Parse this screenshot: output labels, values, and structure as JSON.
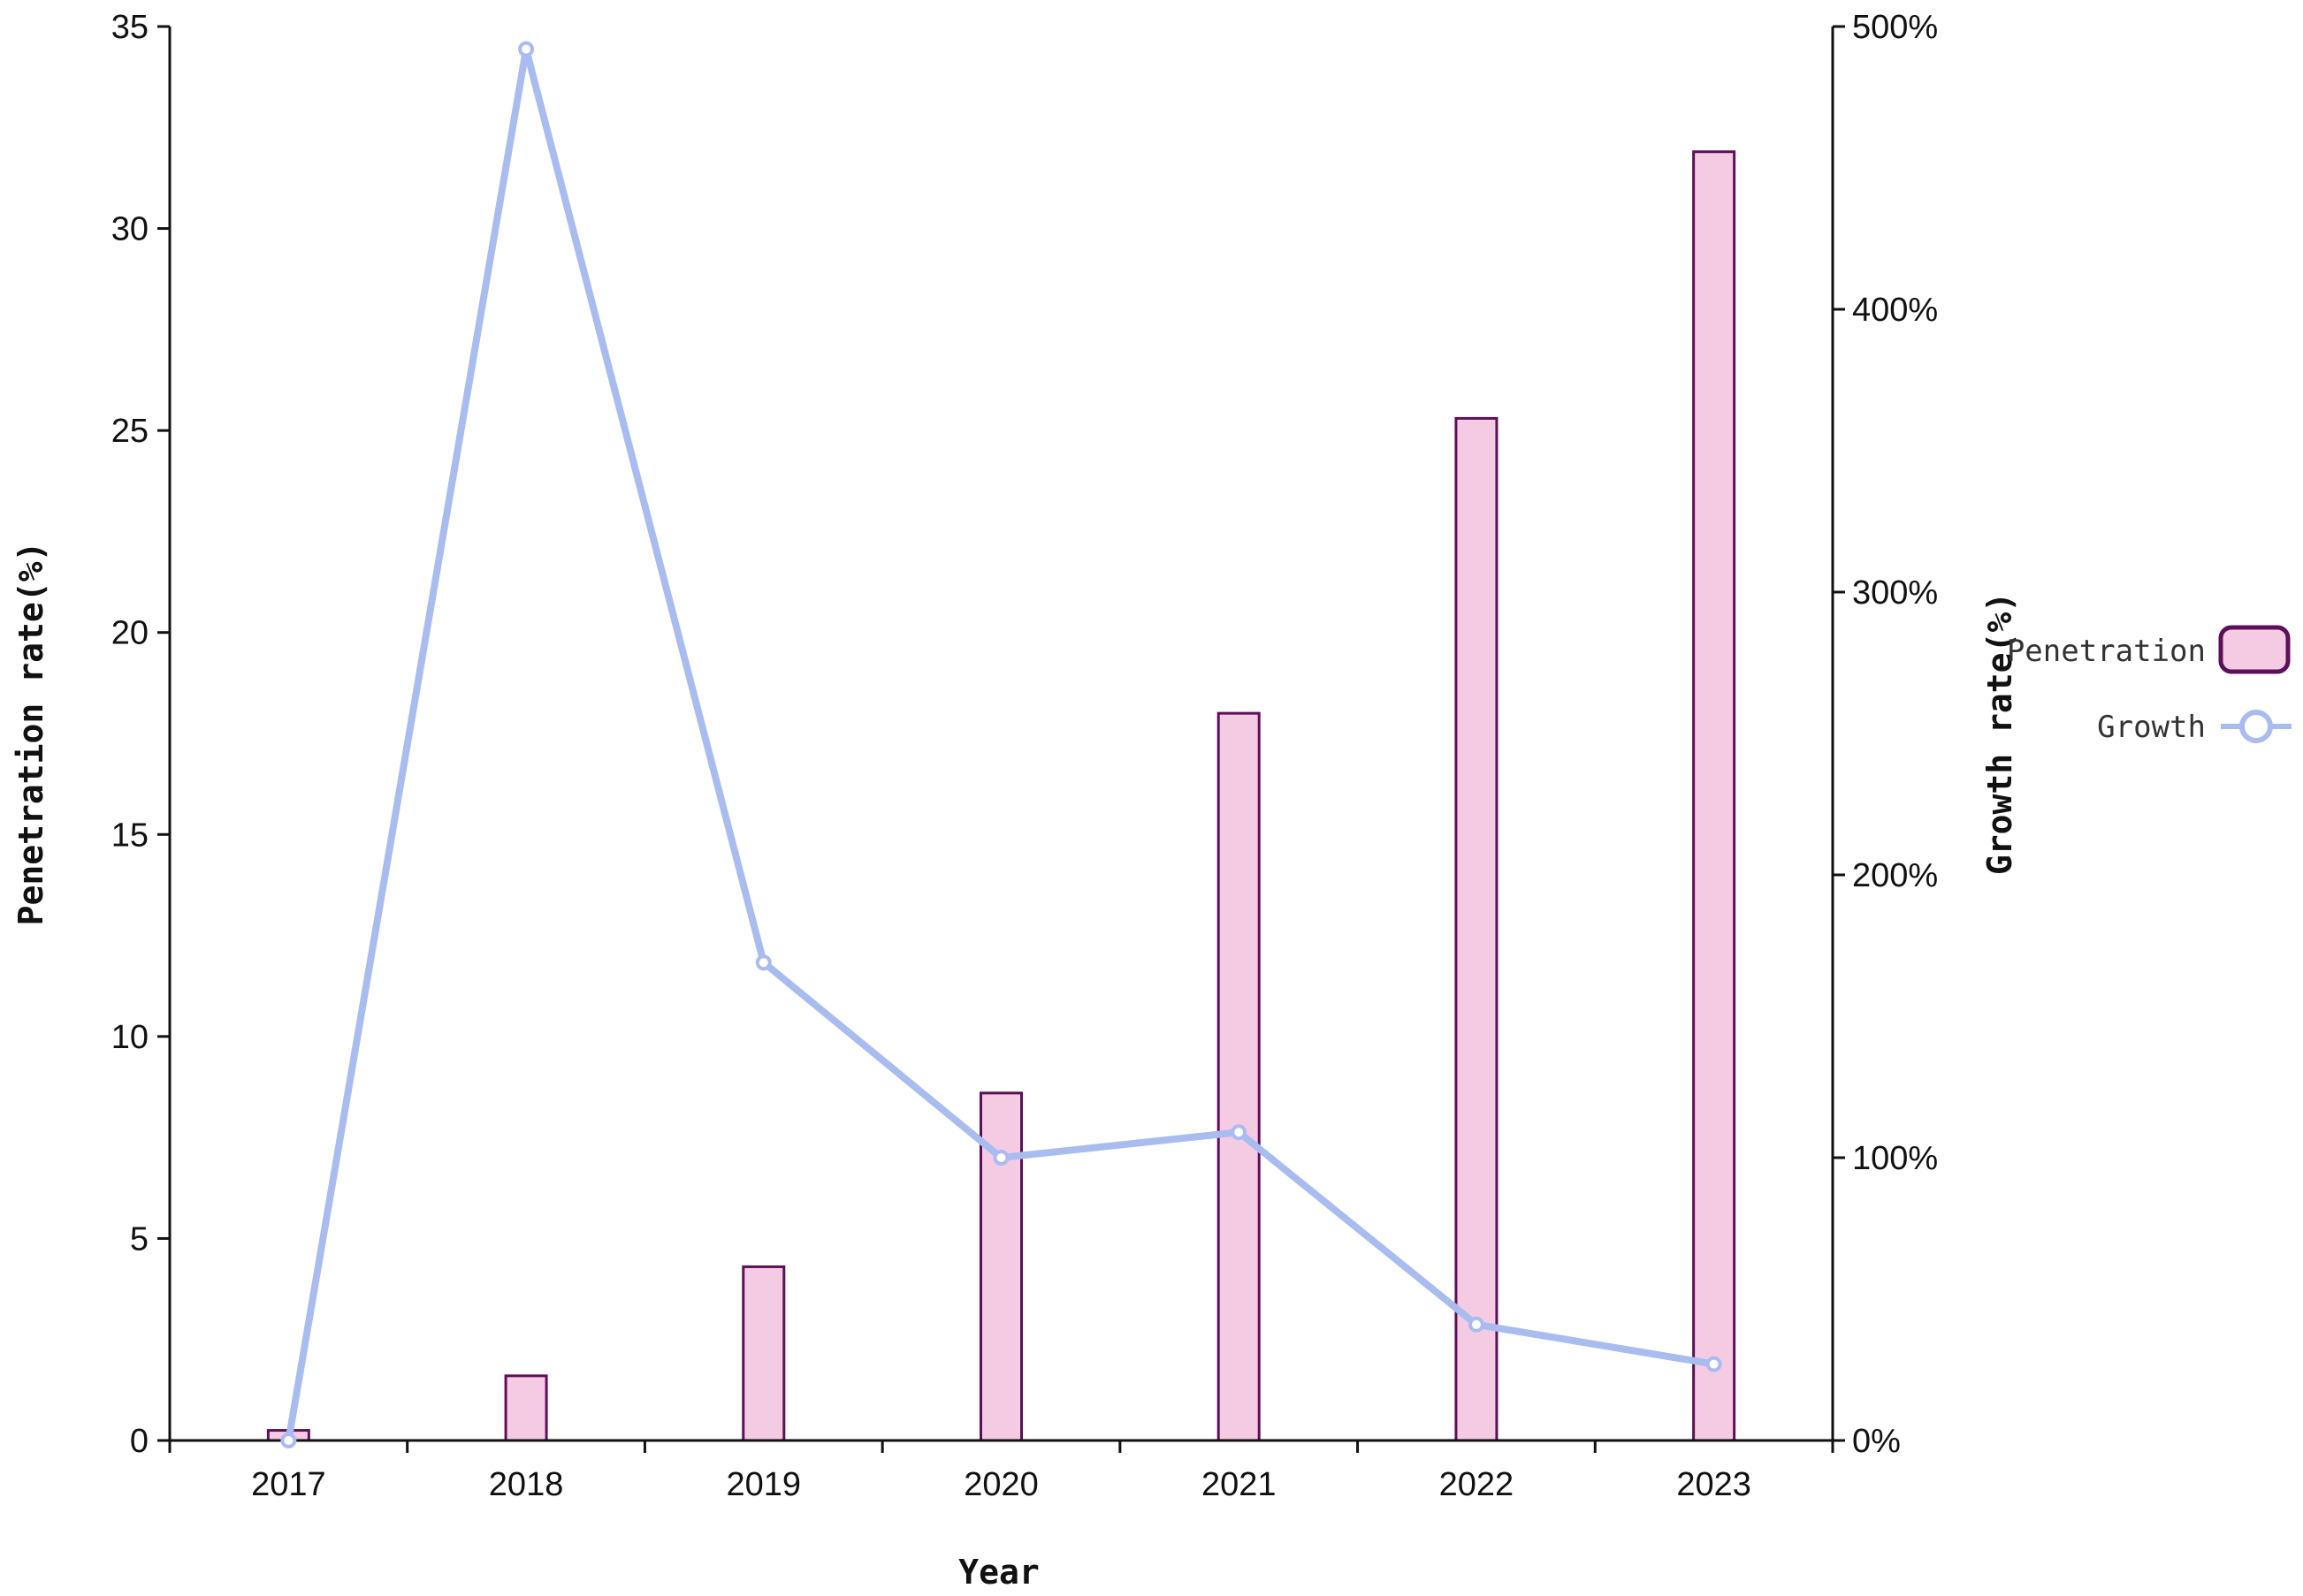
{
  "chart_data": {
    "type": "bar",
    "categories": [
      "2017",
      "2018",
      "2019",
      "2020",
      "2021",
      "2022",
      "2023"
    ],
    "series": [
      {
        "name": "Penetration",
        "type": "bar",
        "axis": "left",
        "values": [
          0.25,
          1.6,
          4.3,
          8.6,
          18.0,
          25.3,
          31.9
        ],
        "color": "#f5cbe4",
        "stroke": "#5e0f5a"
      },
      {
        "name": "Growth",
        "type": "line",
        "axis": "right",
        "values": [
          0,
          492,
          169,
          100,
          109,
          41,
          27
        ],
        "color": "#a9bcf0"
      }
    ],
    "xlabel": "Year",
    "ylabel": "Penetration rate(%)",
    "y2label": "Growth rate(%)",
    "ylim": [
      0,
      35
    ],
    "y2lim": [
      0,
      500
    ],
    "yticks": [
      "0",
      "5",
      "10",
      "15",
      "20",
      "25",
      "30",
      "35"
    ],
    "y2ticks": [
      "0%",
      "100%",
      "200%",
      "300%",
      "400%",
      "500%"
    ],
    "legend_position": "right",
    "grid": false
  }
}
